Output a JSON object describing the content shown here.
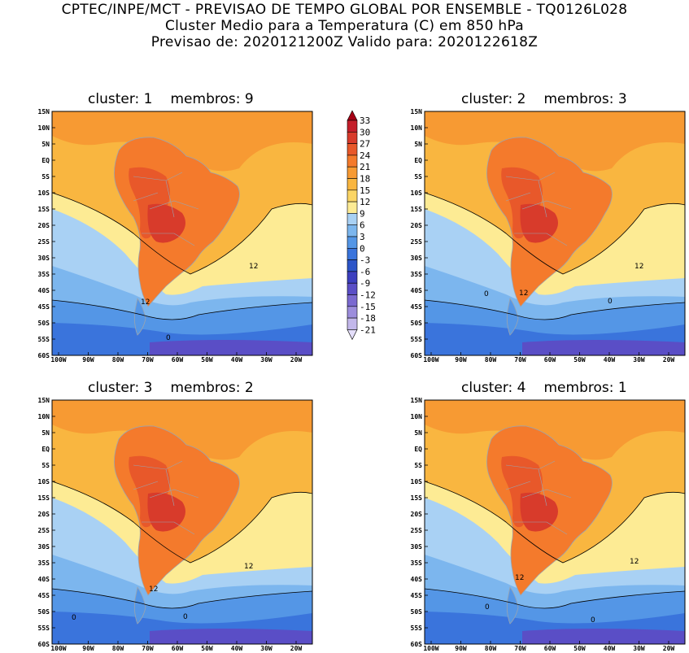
{
  "header": {
    "line1": "CPTEC/INPE/MCT - PREVISAO DE TEMPO GLOBAL POR ENSEMBLE - TQ0126L028",
    "line2": "Cluster Medio para a Temperatura (C) em 850 hPa",
    "line3": "Previsao de: 2020121200Z   Valido para: 2020122618Z"
  },
  "panels": [
    {
      "cluster_label": "cluster:",
      "cluster": "1",
      "membros_label": "membros:",
      "membros": "9"
    },
    {
      "cluster_label": "cluster:",
      "cluster": "2",
      "membros_label": "membros:",
      "membros": "3"
    },
    {
      "cluster_label": "cluster:",
      "cluster": "3",
      "membros_label": "membros:",
      "membros": "2"
    },
    {
      "cluster_label": "cluster:",
      "cluster": "4",
      "membros_label": "membros:",
      "membros": "1"
    }
  ],
  "axes": {
    "lat_ticks": [
      "15N",
      "10N",
      "5N",
      "EQ",
      "5S",
      "10S",
      "15S",
      "20S",
      "25S",
      "30S",
      "35S",
      "40S",
      "45S",
      "50S",
      "55S",
      "60S"
    ],
    "lon_ticks": [
      "100W",
      "90W",
      "80W",
      "70W",
      "60W",
      "50W",
      "40W",
      "30W",
      "20W"
    ]
  },
  "colorbar": {
    "labels": [
      "33",
      "30",
      "27",
      "24",
      "21",
      "18",
      "15",
      "12",
      "9",
      "6",
      "3",
      "0",
      "-3",
      "-6",
      "-9",
      "-12",
      "-15",
      "-18",
      "-21"
    ],
    "colors": [
      "#a50015",
      "#c41e2a",
      "#d83b2b",
      "#e8582a",
      "#f47a2c",
      "#f79a33",
      "#f9b640",
      "#fbd564",
      "#fdeb94",
      "#a9d1f4",
      "#7cb6ee",
      "#5496e6",
      "#3a74dc",
      "#2c55c8",
      "#3c3fbf",
      "#5a4ec6",
      "#7a69d0",
      "#9c8ddc",
      "#c2b7ea",
      "#e4defa"
    ]
  },
  "contour_labels": {
    "p1": [
      "12",
      "12",
      "0"
    ],
    "p2": [
      "12",
      "12",
      "0",
      "0"
    ],
    "p3": [
      "12",
      "12",
      "0",
      "0"
    ],
    "p4": [
      "12",
      "12",
      "0",
      "0"
    ]
  }
}
